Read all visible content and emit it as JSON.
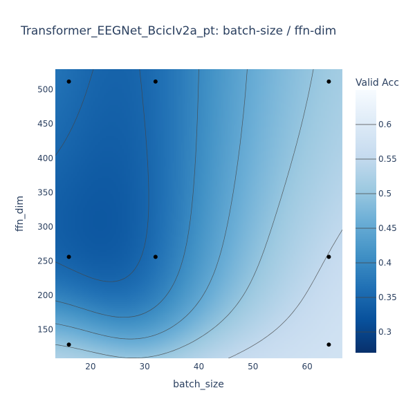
{
  "chart_data": {
    "type": "contour",
    "title": "Transformer_EEGNet_BcicIv2a_pt: batch-size / ffn-dim",
    "xlabel": "batch_size",
    "ylabel": "ffn_dim",
    "xlim": [
      13.5,
      66.5
    ],
    "ylim": [
      108,
      530
    ],
    "x_ticks": [
      20,
      30,
      40,
      50,
      60
    ],
    "y_ticks": [
      150,
      200,
      250,
      300,
      350,
      400,
      450,
      500
    ],
    "colorbar": {
      "title": "Valid Acc",
      "colorscale": "Blues (reversed)",
      "range": [
        0.27,
        0.65
      ],
      "ticks": [
        0.3,
        0.35,
        0.4,
        0.45,
        0.5,
        0.55,
        0.6
      ]
    },
    "contour_levels": [
      0.3,
      0.35,
      0.4,
      0.45,
      0.5,
      0.55,
      0.6
    ],
    "points": [
      {
        "x": 16,
        "y": 128,
        "value": 0.57
      },
      {
        "x": 16,
        "y": 256,
        "value": 0.28
      },
      {
        "x": 16,
        "y": 512,
        "value": 0.4
      },
      {
        "x": 32,
        "y": 256,
        "value": 0.28
      },
      {
        "x": 32,
        "y": 512,
        "value": 0.3
      },
      {
        "x": 64,
        "y": 128,
        "value": 0.58
      },
      {
        "x": 64,
        "y": 256,
        "value": 0.64
      },
      {
        "x": 64,
        "y": 512,
        "value": 0.55
      }
    ],
    "colors": {
      "min": "#08306b",
      "mid": "#4292c6",
      "max": "#f7fbff",
      "markers": "#000000",
      "contour_lines": "#444444",
      "text": "#2a3f5f"
    }
  }
}
